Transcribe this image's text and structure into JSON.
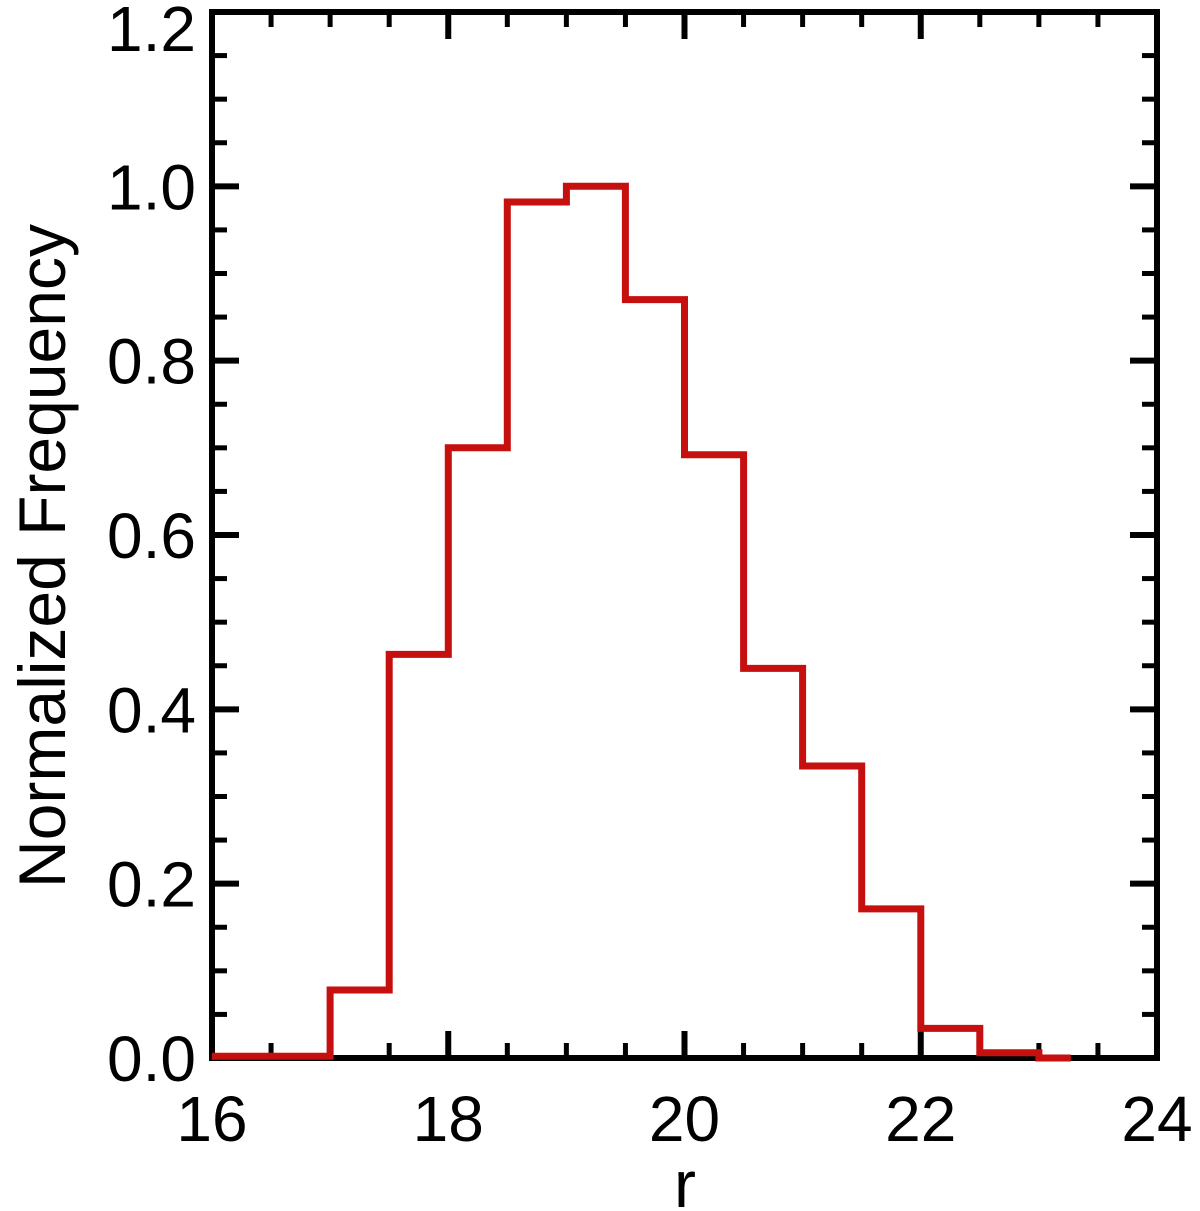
{
  "figure": {
    "background": "#ffffff",
    "axis_color": "#000000",
    "text_color": "#000000"
  },
  "chart_data": {
    "type": "bar",
    "subtype": "step-histogram-outline",
    "title": "",
    "xlabel": "r",
    "ylabel": "Normalized Frequency",
    "xlim": [
      16,
      24
    ],
    "ylim": [
      0.0,
      1.2
    ],
    "grid": false,
    "legend": null,
    "line_color": "#c60f0f",
    "x_major_ticks": [
      16,
      18,
      20,
      22,
      24
    ],
    "x_major_tick_labels": [
      "16",
      "18",
      "20",
      "22",
      "24"
    ],
    "x_minor_tick_interval": 0.5,
    "y_major_ticks": [
      0.0,
      0.2,
      0.4,
      0.6,
      0.8,
      1.0,
      1.2
    ],
    "y_major_tick_labels": [
      "0.0",
      "0.2",
      "0.4",
      "0.6",
      "0.8",
      "1.0",
      "1.2"
    ],
    "y_minor_tick_interval": 0.05,
    "bin_edges": [
      16.0,
      16.5,
      17.0,
      17.5,
      18.0,
      18.5,
      19.0,
      19.5,
      20.0,
      20.5,
      21.0,
      21.5,
      22.0,
      22.5,
      23.0,
      23.27
    ],
    "values": [
      0.002,
      0.002,
      0.078,
      0.463,
      0.7,
      0.982,
      1.0,
      0.87,
      0.692,
      0.447,
      0.335,
      0.171,
      0.034,
      0.006,
      0.0
    ]
  }
}
